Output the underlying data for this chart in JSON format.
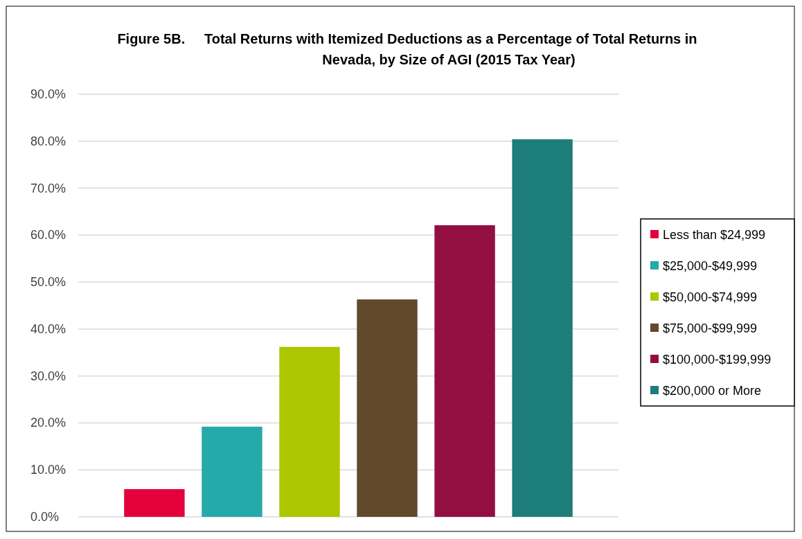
{
  "chart_data": {
    "type": "bar",
    "title": "Figure 5B.     Total Returns with Itemized Deductions as a Percentage of Total Returns in Nevada, by Size of AGI (2015 Tax Year)",
    "categories": [
      null,
      null,
      null,
      null,
      null,
      null
    ],
    "series": [
      {
        "name": "Less than $24,999",
        "color": "#e4003b",
        "values": [
          5.9,
          null,
          null,
          null,
          null,
          null
        ]
      },
      {
        "name": "$25,000-$49,999",
        "color": "#26a9a9",
        "values": [
          null,
          19.2,
          null,
          null,
          null,
          null
        ]
      },
      {
        "name": "$50,000-$74,999",
        "color": "#aec600",
        "values": [
          null,
          null,
          36.2,
          null,
          null,
          null
        ]
      },
      {
        "name": "$75,000-$99,999",
        "color": "#62492b",
        "values": [
          null,
          null,
          null,
          46.3,
          null,
          null
        ]
      },
      {
        "name": "$100,000-$199,999",
        "color": "#930e42",
        "values": [
          null,
          null,
          null,
          null,
          62.1,
          null
        ]
      },
      {
        "name": "$200,000 or More",
        "color": "#1d7d7a",
        "values": [
          null,
          null,
          null,
          null,
          null,
          80.4
        ]
      }
    ],
    "ylim": [
      0,
      90
    ],
    "yticks": [
      {
        "value": 0,
        "label": "0.0%"
      },
      {
        "value": 10,
        "label": "10.0%"
      },
      {
        "value": 20,
        "label": "20.0%"
      },
      {
        "value": 30,
        "label": "30.0%"
      },
      {
        "value": 40,
        "label": "40.0%"
      },
      {
        "value": 50,
        "label": "50.0%"
      },
      {
        "value": 60,
        "label": "60.0%"
      },
      {
        "value": 70,
        "label": "70.0%"
      },
      {
        "value": 80,
        "label": "80.0%"
      },
      {
        "value": 90,
        "label": "90.0%"
      }
    ],
    "grid": "y",
    "legend": "right"
  }
}
